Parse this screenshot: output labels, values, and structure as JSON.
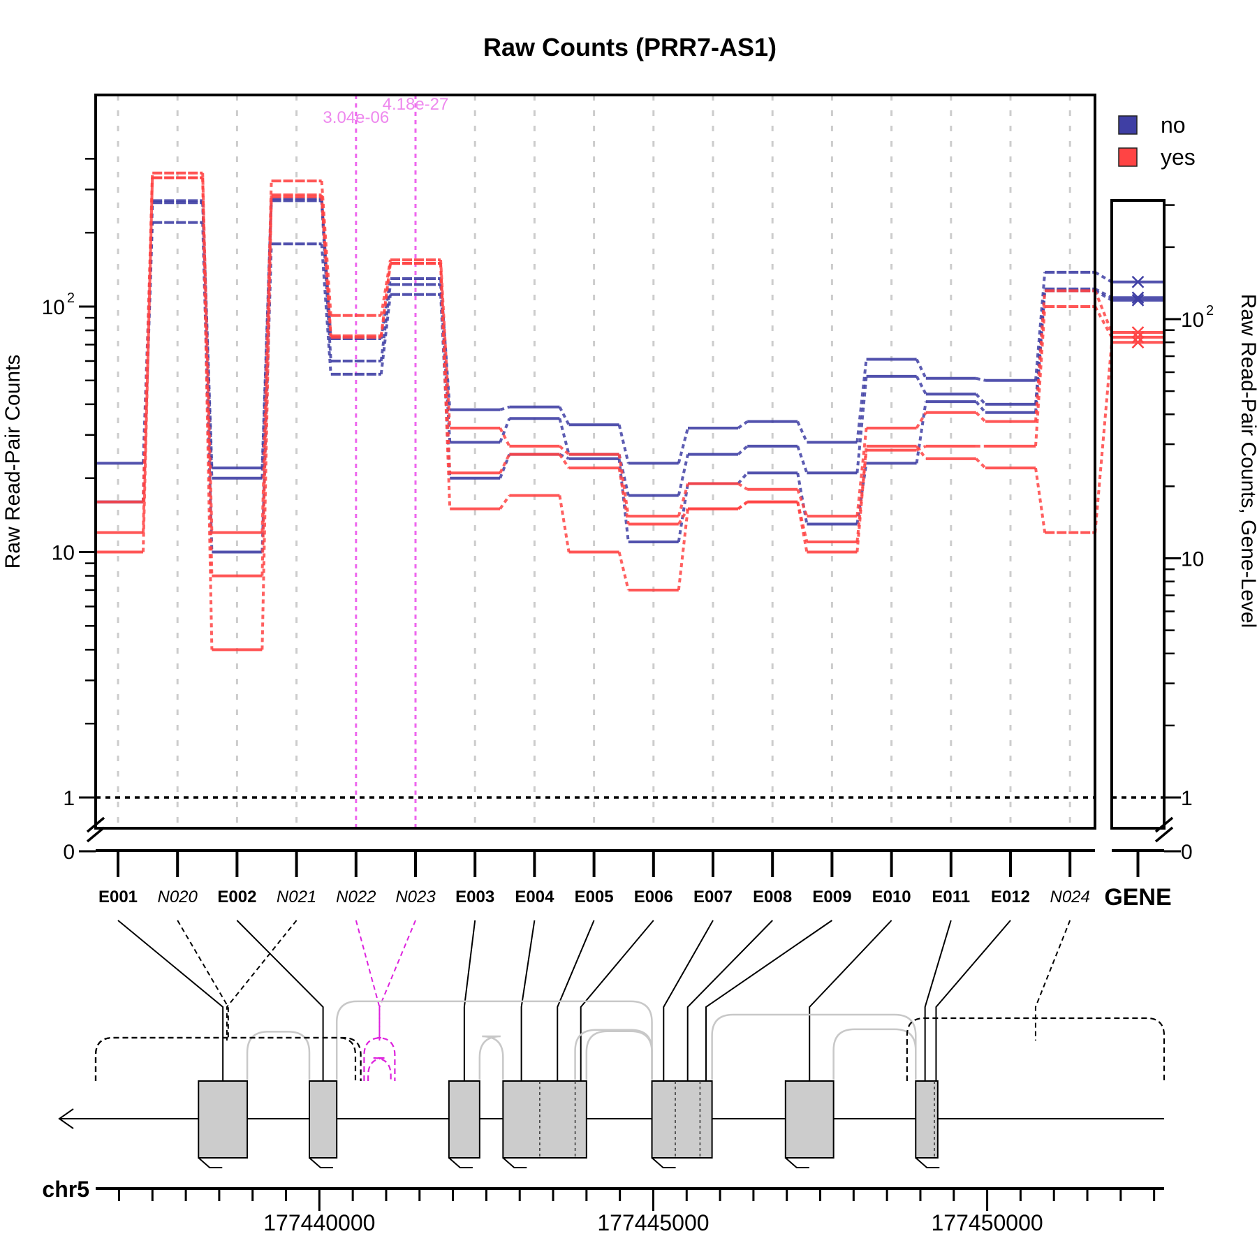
{
  "chart_data": {
    "type": "line",
    "title": "Raw Counts (PRR7-AS1)",
    "ylabel_left": "Raw Read-Pair Counts",
    "ylabel_right": "Raw Read-Pair Counts, Gene-Level",
    "yscale": "log",
    "ylim": [
      0,
      450
    ],
    "y_ticks_left": [
      {
        "v": 0,
        "label": "0"
      },
      {
        "v": 1,
        "label": "1"
      },
      {
        "v": 10,
        "label": "10"
      },
      {
        "v": 100,
        "label": "10",
        "sup": "2"
      }
    ],
    "y_ticks_right": [
      {
        "v": 0,
        "label": "0"
      },
      {
        "v": 1,
        "label": "1"
      },
      {
        "v": 10,
        "label": "10"
      },
      {
        "v": 100,
        "label": "10",
        "sup": "2"
      }
    ],
    "legend": {
      "placement": "top-right",
      "entries": [
        {
          "label": "no",
          "color": "#3f3fa4"
        },
        {
          "label": "yes",
          "color": "#ff4444"
        }
      ]
    },
    "features": [
      {
        "name": "E001",
        "type": "exon"
      },
      {
        "name": "N020",
        "type": "junction"
      },
      {
        "name": "E002",
        "type": "exon"
      },
      {
        "name": "N021",
        "type": "junction"
      },
      {
        "name": "N022",
        "type": "junction",
        "significant": true,
        "pvalue": "3.04e-06"
      },
      {
        "name": "N023",
        "type": "junction",
        "significant": true,
        "pvalue": "4.18e-27"
      },
      {
        "name": "E003",
        "type": "exon"
      },
      {
        "name": "E004",
        "type": "exon"
      },
      {
        "name": "E005",
        "type": "exon"
      },
      {
        "name": "E006",
        "type": "exon"
      },
      {
        "name": "E007",
        "type": "exon"
      },
      {
        "name": "E008",
        "type": "exon"
      },
      {
        "name": "E009",
        "type": "exon"
      },
      {
        "name": "E010",
        "type": "exon"
      },
      {
        "name": "E011",
        "type": "exon"
      },
      {
        "name": "E012",
        "type": "exon"
      },
      {
        "name": "N024",
        "type": "junction"
      }
    ],
    "gene_label": "GENE",
    "series": [
      {
        "name": "no",
        "color": "#3f3fa4",
        "values": [
          23,
          270,
          22,
          275,
          74,
          130,
          38,
          39,
          33,
          23,
          32,
          34,
          28,
          61,
          51,
          50,
          138
        ],
        "gene": 143
      },
      {
        "name": "no",
        "color": "#3f3fa4",
        "values": [
          16,
          265,
          20,
          270,
          60,
          123,
          28,
          35,
          25,
          17,
          25,
          27,
          21,
          52,
          44,
          40,
          118
        ],
        "gene": 123
      },
      {
        "name": "no",
        "color": "#3f3fa4",
        "values": [
          16,
          220,
          10,
          180,
          53,
          112,
          20,
          25,
          24,
          11,
          19,
          21,
          13,
          23,
          41,
          37,
          116
        ],
        "gene": 120
      },
      {
        "name": "yes",
        "color": "#ff4444",
        "values": [
          16,
          350,
          12,
          325,
          92,
          155,
          32,
          27,
          25,
          14,
          19,
          18,
          14,
          32,
          37,
          34,
          116
        ],
        "gene": 88
      },
      {
        "name": "yes",
        "color": "#ff4444",
        "values": [
          12,
          335,
          8,
          285,
          75,
          150,
          21,
          25,
          22,
          13,
          15,
          16,
          11,
          26,
          27,
          27,
          100
        ],
        "gene": 84
      },
      {
        "name": "yes",
        "color": "#ff4444",
        "values": [
          10,
          335,
          4,
          280,
          76,
          150,
          15,
          17,
          10,
          7,
          15,
          16,
          10,
          27,
          24,
          22,
          12
        ],
        "gene": 80
      }
    ],
    "gene_model": {
      "chromosome": "chr5",
      "strand": "-",
      "xlim": [
        177436650,
        177452650
      ],
      "x_ticks": [
        {
          "v": 177440000,
          "label": "177440000"
        },
        {
          "v": 177445000,
          "label": "177445000"
        },
        {
          "v": 177450000,
          "label": "177450000"
        }
      ],
      "exon_blocks": [
        [
          177438190,
          177438920
        ],
        [
          177439850,
          177440260
        ],
        [
          177441940,
          177442400
        ],
        [
          177442750,
          177444000
        ],
        [
          177444980,
          177445880
        ],
        [
          177446980,
          177447700
        ],
        [
          177448930,
          177449260
        ]
      ],
      "exon_features": {
        "E001": [
          177438190,
          177438920
        ],
        "E002": [
          177439850,
          177440260
        ],
        "E003": [
          177441940,
          177442400
        ],
        "E004": [
          177442750,
          177443300
        ],
        "E005": [
          177443300,
          177443830
        ],
        "E006": [
          177443830,
          177444000
        ],
        "E007": [
          177444980,
          177445330
        ],
        "E008": [
          177445330,
          177445700
        ],
        "E009": [
          177445700,
          177445880
        ],
        "E010": [
          177446980,
          177447700
        ],
        "E011": [
          177448930,
          177449210
        ],
        "E012": [
          177449210,
          177449260
        ]
      },
      "junction_features": {
        "N020": [
          177436650,
          177440620
        ],
        "N021": [
          177436650,
          177440580
        ],
        "N022": [
          177440670,
          177441130
        ],
        "N023": [
          177440670,
          177441130
        ],
        "N024": [
          177448800,
          177452650
        ]
      },
      "gray_arcs": [
        [
          177438920,
          177439850
        ],
        [
          177440260,
          177444980
        ],
        [
          177442400,
          177442750
        ],
        [
          177443830,
          177444980
        ],
        [
          177444000,
          177444980
        ],
        [
          177445880,
          177448930
        ],
        [
          177447700,
          177448930
        ]
      ]
    }
  }
}
